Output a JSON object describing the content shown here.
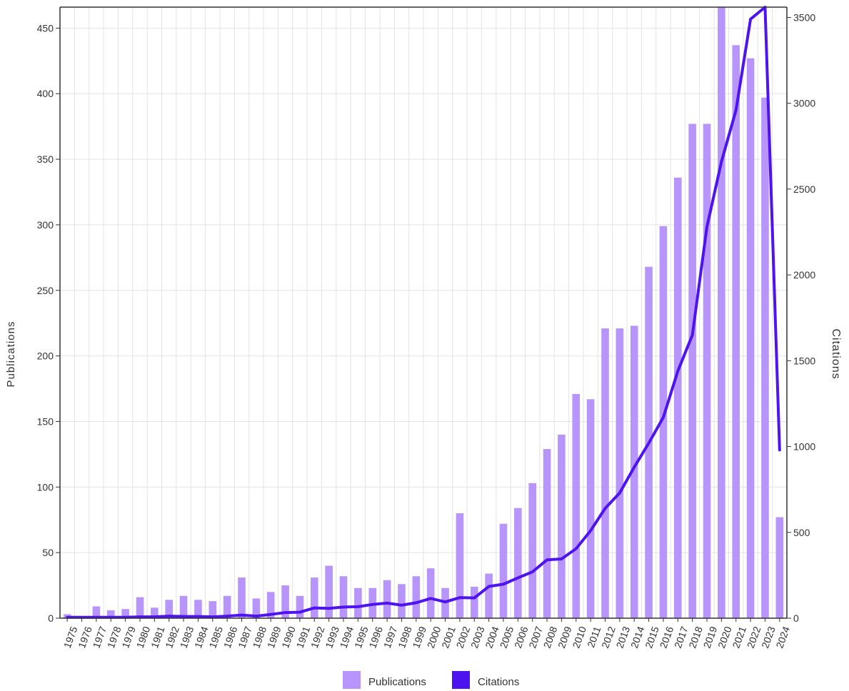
{
  "chart_data": {
    "type": "bar-line-combo",
    "categories": [
      "1975",
      "1976",
      "1977",
      "1978",
      "1979",
      "1980",
      "1981",
      "1982",
      "1983",
      "1984",
      "1985",
      "1986",
      "1987",
      "1988",
      "1989",
      "1990",
      "1991",
      "1992",
      "1993",
      "1994",
      "1995",
      "1996",
      "1997",
      "1998",
      "1999",
      "2000",
      "2001",
      "2002",
      "2003",
      "2004",
      "2005",
      "2006",
      "2007",
      "2008",
      "2009",
      "2010",
      "2011",
      "2012",
      "2013",
      "2014",
      "2015",
      "2016",
      "2017",
      "2018",
      "2019",
      "2020",
      "2021",
      "2022",
      "2023",
      "2024"
    ],
    "series": [
      {
        "name": "Publications",
        "type": "bar",
        "axis": "left",
        "color": "#b795fb",
        "values": [
          3,
          1,
          9,
          6,
          7,
          16,
          8,
          14,
          17,
          14,
          13,
          17,
          31,
          15,
          20,
          25,
          17,
          31,
          40,
          32,
          23,
          23,
          29,
          26,
          32,
          38,
          23,
          80,
          24,
          34,
          72,
          84,
          103,
          129,
          140,
          171,
          167,
          221,
          221,
          223,
          268,
          299,
          336,
          377,
          377,
          466,
          437,
          427,
          397,
          77
        ]
      },
      {
        "name": "Citations",
        "type": "line",
        "axis": "right",
        "color": "#4d14f0",
        "values": [
          5,
          5,
          5,
          5,
          5,
          8,
          8,
          12,
          10,
          10,
          8,
          12,
          18,
          12,
          22,
          33,
          35,
          60,
          57,
          65,
          67,
          80,
          88,
          76,
          90,
          115,
          95,
          120,
          118,
          185,
          198,
          235,
          270,
          340,
          345,
          405,
          510,
          640,
          730,
          880,
          1020,
          1170,
          1440,
          1650,
          2280,
          2660,
          2960,
          3490,
          3560,
          980
        ]
      }
    ],
    "y_left": {
      "label": "Publications",
      "min": 0,
      "max": 466,
      "ticks": [
        0,
        50,
        100,
        150,
        200,
        250,
        300,
        350,
        400,
        450
      ]
    },
    "y_right": {
      "label": "Citations",
      "min": 0,
      "max": 3560,
      "ticks": [
        0,
        500,
        1000,
        1500,
        2000,
        2500,
        3000,
        3500
      ]
    },
    "grid": true,
    "legend_position": "bottom-center",
    "legend": [
      {
        "label": "Publications",
        "color": "#b795fb"
      },
      {
        "label": "Citations",
        "color": "#4d14f0"
      }
    ]
  }
}
